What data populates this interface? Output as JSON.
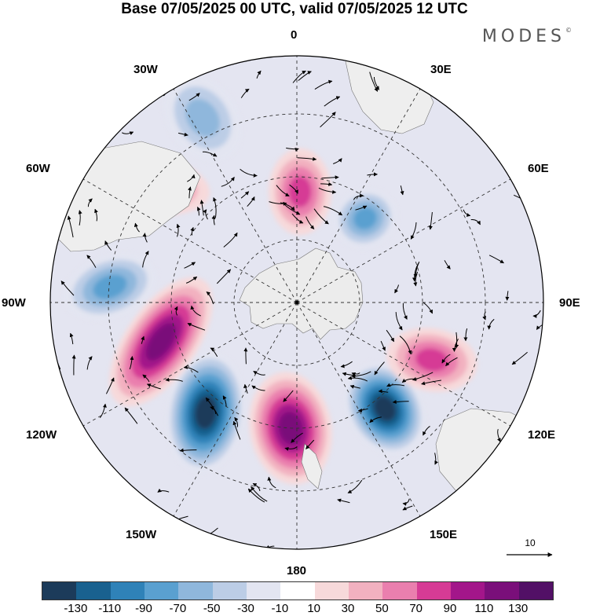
{
  "title": "Base 07/05/2025 00 UTC, valid 07/05/2025 12 UTC",
  "brand": "MODES",
  "brand_mark": "©",
  "longitude_labels": {
    "top": "0",
    "top_right": "30E",
    "right_upper": "60E",
    "right": "90E",
    "right_lower": "120E",
    "bottom_right": "150E",
    "bottom": "180",
    "bottom_left": "150W",
    "left_lower": "120W",
    "left": "90W",
    "left_upper": "60W",
    "top_left": "30W"
  },
  "vector_reference": {
    "value": "10",
    "icon": "arrow-right-icon"
  },
  "colorbar": {
    "colors": [
      "#1c3b5a",
      "#19618f",
      "#2f82b8",
      "#5aa0d0",
      "#8fb7dc",
      "#bccde6",
      "#e3e5f1",
      "#ffffff",
      "#f7d9da",
      "#f2b1c0",
      "#ea7fae",
      "#d63b95",
      "#a3168a",
      "#7a0f7a",
      "#521066"
    ],
    "tick_labels": [
      "-130",
      "-110",
      "-90",
      "-70",
      "-50",
      "-30",
      "-10",
      "10",
      "30",
      "50",
      "70",
      "90",
      "110",
      "130"
    ]
  },
  "map": {
    "projection": "south-polar-stereographic",
    "antarctica_color": "#ececec",
    "anomaly_centers": [
      {
        "sign": "positive",
        "strength": 110,
        "name": "south-of-new-zealand"
      },
      {
        "sign": "negative",
        "strength": -130,
        "name": "pacific-negative"
      },
      {
        "sign": "negative",
        "strength": -130,
        "name": "tasman-negative"
      },
      {
        "sign": "positive",
        "strength": 110,
        "name": "pacific-positive"
      },
      {
        "sign": "negative",
        "strength": -70,
        "name": "drake-negative"
      },
      {
        "sign": "positive",
        "strength": 90,
        "name": "south-america-positive"
      },
      {
        "sign": "positive",
        "strength": 70,
        "name": "atlantic-positive"
      },
      {
        "sign": "negative",
        "strength": -70,
        "name": "weddell-negative"
      },
      {
        "sign": "positive",
        "strength": 70,
        "name": "indian-ocean-positive"
      },
      {
        "sign": "negative",
        "strength": -50,
        "name": "north-atlantic-negative"
      }
    ]
  }
}
